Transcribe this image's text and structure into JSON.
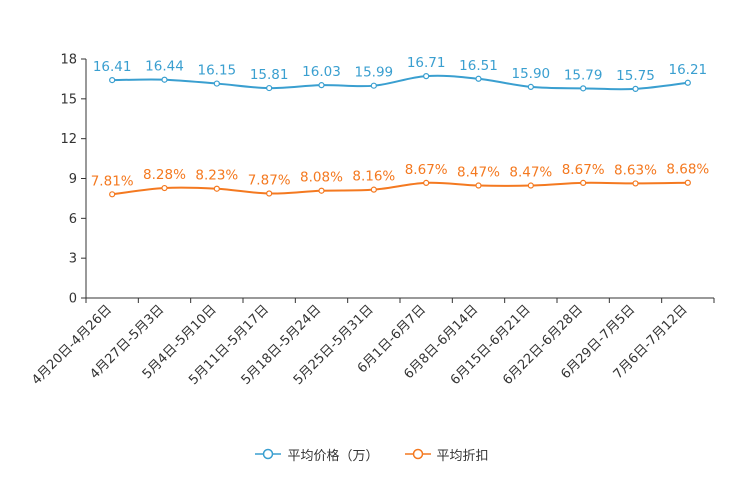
{
  "chart_data": {
    "type": "line",
    "categories": [
      "4月20日-4月26日",
      "4月27日-5月3日",
      "5月4日-5月10日",
      "5月11日-5月17日",
      "5月18日-5月24日",
      "5月25日-5月31日",
      "6月1日-6月7日",
      "6月8日-6月14日",
      "6月15日-6月21日",
      "6月22日-6月28日",
      "6月29日-7月5日",
      "7月6日-7月12日"
    ],
    "series": [
      {
        "name": "平均价格（万）",
        "color": "#3a9fd0",
        "values": [
          16.41,
          16.44,
          16.15,
          15.81,
          16.03,
          15.99,
          16.71,
          16.51,
          15.9,
          15.79,
          15.75,
          16.21
        ],
        "labels": [
          "16.41",
          "16.44",
          "16.15",
          "15.81",
          "16.03",
          "15.99",
          "16.71",
          "16.51",
          "15.90",
          "15.79",
          "15.75",
          "16.21"
        ]
      },
      {
        "name": "平均折扣",
        "color": "#f47920",
        "values": [
          7.81,
          8.28,
          8.23,
          7.87,
          8.08,
          8.16,
          8.67,
          8.47,
          8.47,
          8.67,
          8.63,
          8.68
        ],
        "labels": [
          "7.81%",
          "8.28%",
          "8.23%",
          "7.87%",
          "8.08%",
          "8.16%",
          "8.67%",
          "8.47%",
          "8.47%",
          "8.67%",
          "8.63%",
          "8.68%"
        ]
      }
    ],
    "ylim": [
      0,
      18
    ],
    "yticks": [
      "0",
      "3",
      "6",
      "9",
      "12",
      "15",
      "18"
    ],
    "ytick_values": [
      0,
      3,
      6,
      9,
      12,
      15,
      18
    ],
    "legend_position": "bottom-center"
  }
}
